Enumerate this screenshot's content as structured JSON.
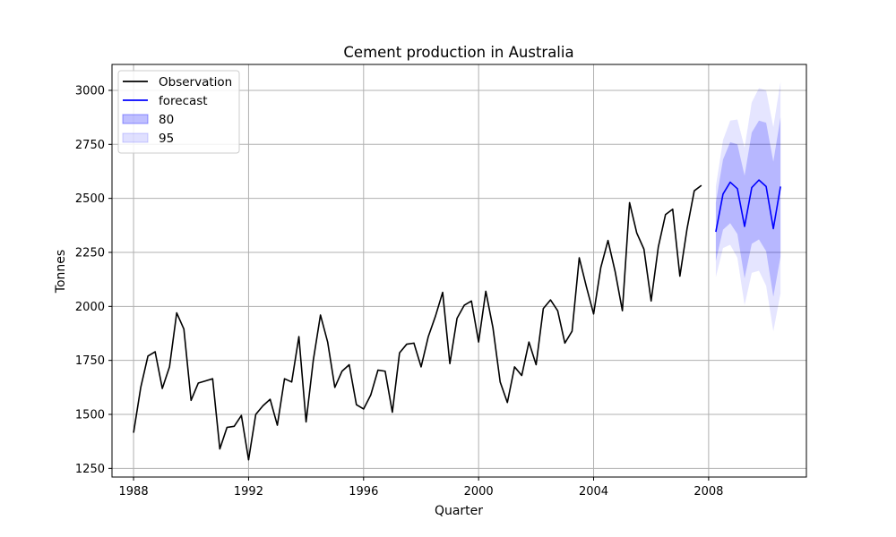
{
  "chart_data": {
    "type": "line",
    "title": "Cement production in Australia",
    "xlabel": "Quarter",
    "ylabel": "Tonnes",
    "xlim": [
      1987.25,
      2011.4
    ],
    "ylim": [
      1210,
      3120
    ],
    "xticks": [
      1988,
      1992,
      1996,
      2000,
      2004,
      2008
    ],
    "yticks": [
      1250,
      1500,
      1750,
      2000,
      2250,
      2500,
      2750,
      3000
    ],
    "grid": true,
    "legend_position": "top-left",
    "colors": {
      "observation": "#000000",
      "forecast": "#0000ff",
      "band80": "#0000ff",
      "band95": "#0000ff"
    },
    "legend": [
      {
        "key": "observation",
        "label": "Observation",
        "style": "line"
      },
      {
        "key": "forecast",
        "label": "forecast",
        "style": "line"
      },
      {
        "key": "band80",
        "label": "80",
        "style": "patch"
      },
      {
        "key": "band95",
        "label": "95",
        "style": "patch"
      }
    ],
    "observation": {
      "x": [
        1988.0,
        1988.25,
        1988.5,
        1988.75,
        1989.0,
        1989.25,
        1989.5,
        1989.75,
        1990.0,
        1990.25,
        1990.5,
        1990.75,
        1991.0,
        1991.25,
        1991.5,
        1991.75,
        1992.0,
        1992.25,
        1992.5,
        1992.75,
        1993.0,
        1993.25,
        1993.5,
        1993.75,
        1994.0,
        1994.25,
        1994.5,
        1994.75,
        1995.0,
        1995.25,
        1995.5,
        1995.75,
        1996.0,
        1996.25,
        1996.5,
        1996.75,
        1997.0,
        1997.25,
        1997.5,
        1997.75,
        1998.0,
        1998.25,
        1998.5,
        1998.75,
        1999.0,
        1999.25,
        1999.5,
        1999.75,
        2000.0,
        2000.25,
        2000.5,
        2000.75,
        2001.0,
        2001.25,
        2001.5,
        2001.75,
        2002.0,
        2002.25,
        2002.5,
        2002.75,
        2003.0,
        2003.25,
        2003.5,
        2003.75,
        2004.0,
        2004.25,
        2004.5,
        2004.75,
        2005.0,
        2005.25,
        2005.5,
        2005.75,
        2006.0,
        2006.25,
        2006.5,
        2006.75,
        2007.0,
        2007.25,
        2007.5,
        2007.75
      ],
      "y": [
        1415,
        1625,
        1770,
        1790,
        1620,
        1720,
        1970,
        1895,
        1565,
        1645,
        1655,
        1665,
        1340,
        1440,
        1445,
        1495,
        1290,
        1500,
        1540,
        1570,
        1450,
        1665,
        1650,
        1860,
        1465,
        1750,
        1960,
        1835,
        1625,
        1700,
        1730,
        1545,
        1525,
        1590,
        1705,
        1700,
        1510,
        1785,
        1825,
        1830,
        1720,
        1860,
        1955,
        2065,
        1735,
        1945,
        2005,
        2025,
        1835,
        2070,
        1900,
        1650,
        1555,
        1720,
        1680,
        1835,
        1730,
        1990,
        2030,
        1980,
        1830,
        1885,
        2225,
        2090,
        1965,
        2180,
        2305,
        2160,
        1980,
        2480,
        2340,
        2265,
        2025,
        2275,
        2425,
        2450,
        2140,
        2360,
        2535,
        2560
      ]
    },
    "forecast": {
      "x": [
        2008.25,
        2008.5,
        2008.75,
        2009.0,
        2009.25,
        2009.5,
        2009.75,
        2010.0,
        2010.25,
        2010.5
      ],
      "y": [
        2345,
        2520,
        2575,
        2545,
        2370,
        2550,
        2585,
        2555,
        2360,
        2555
      ],
      "lower80": [
        2210,
        2355,
        2385,
        2335,
        2130,
        2290,
        2310,
        2255,
        2045,
        2230
      ],
      "upper80": [
        2480,
        2680,
        2760,
        2750,
        2605,
        2805,
        2860,
        2850,
        2670,
        2875
      ],
      "lower95": [
        2135,
        2270,
        2285,
        2225,
        2005,
        2155,
        2165,
        2095,
        1885,
        2060
      ],
      "upper95": [
        2555,
        2770,
        2860,
        2865,
        2735,
        2945,
        3010,
        3000,
        2830,
        3040
      ]
    }
  }
}
